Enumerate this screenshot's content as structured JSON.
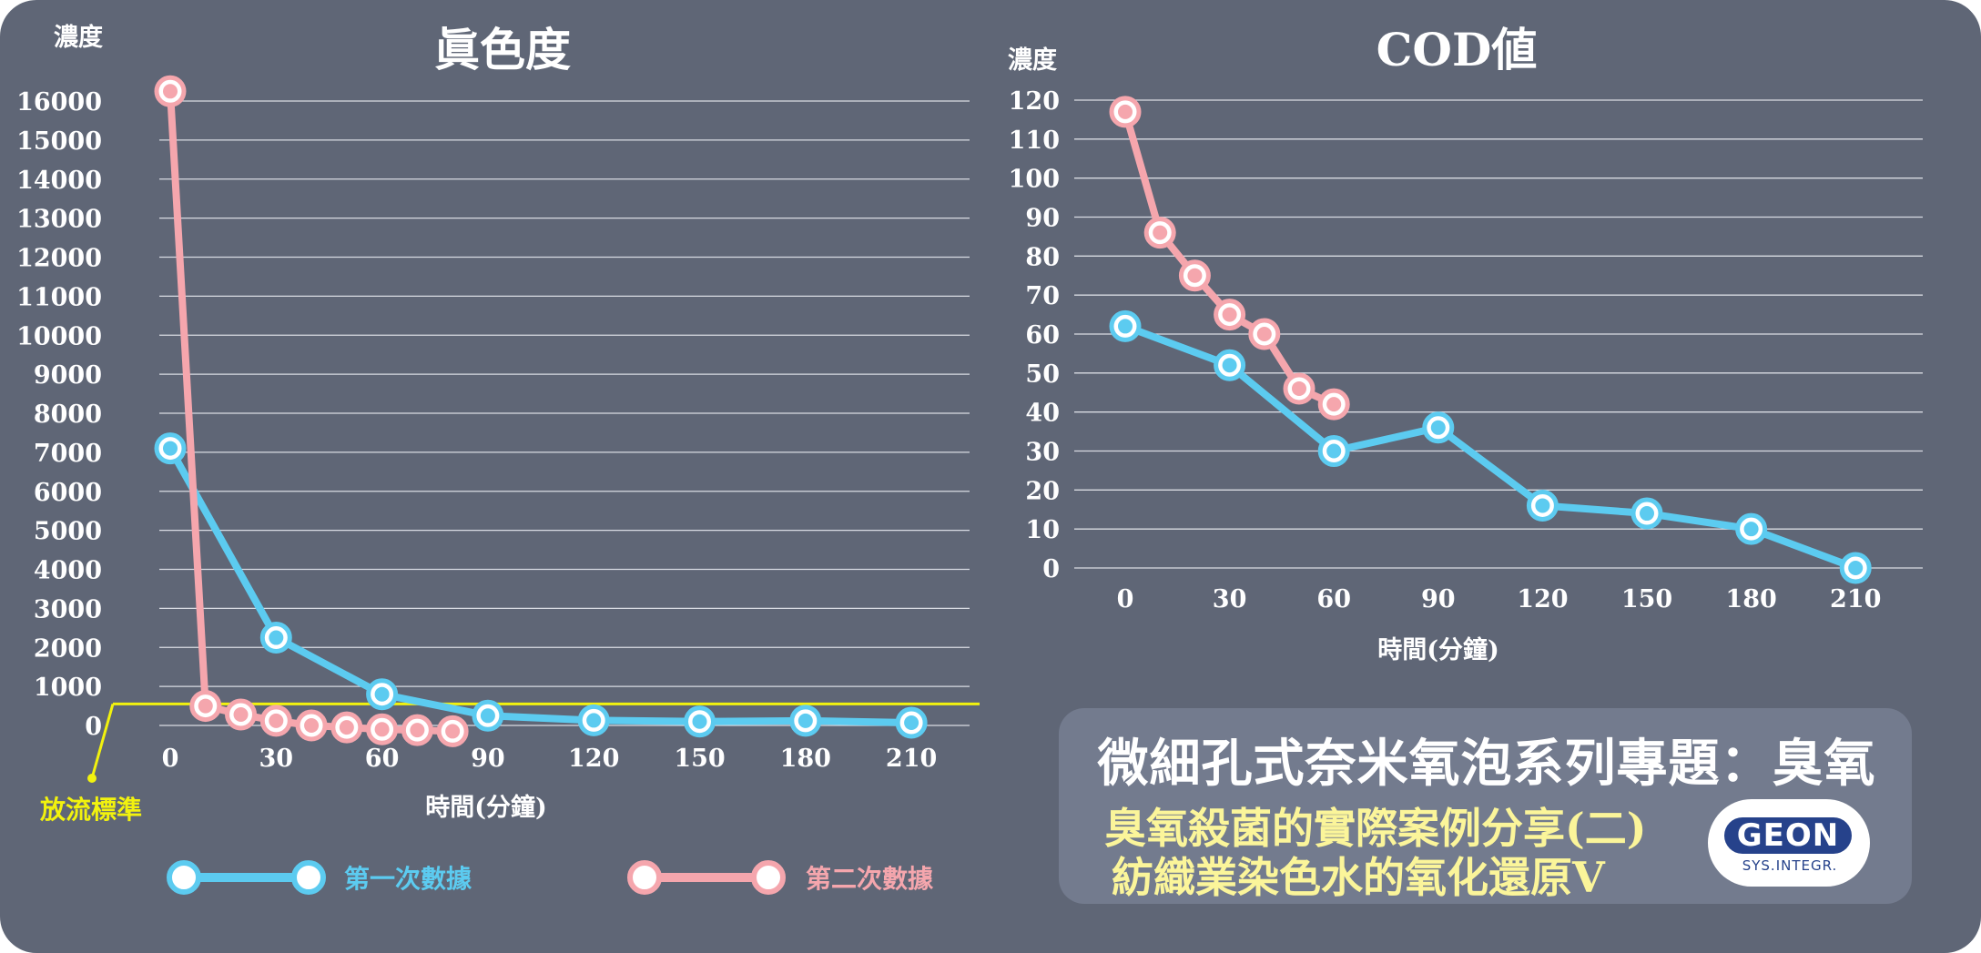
{
  "chart_data": [
    {
      "type": "line",
      "title": "眞色度",
      "ylabel": "濃度",
      "xlabel": "時間(分鐘)",
      "ylim": [
        0,
        16000
      ],
      "yticks": [
        0,
        1000,
        2000,
        3000,
        4000,
        5000,
        6000,
        7000,
        8000,
        9000,
        10000,
        11000,
        12000,
        13000,
        14000,
        15000,
        16000
      ],
      "xticks": [
        0,
        30,
        60,
        90,
        120,
        150,
        180,
        210
      ],
      "threshold": {
        "label": "放流標準",
        "value": 550
      },
      "series": [
        {
          "name": "第一次數據",
          "color": "#5ccbf0",
          "x": [
            0,
            30,
            60,
            90,
            120,
            150,
            180,
            210
          ],
          "values": [
            7100,
            2250,
            800,
            250,
            130,
            100,
            120,
            70
          ]
        },
        {
          "name": "第二次數據",
          "color": "#f5a6ad",
          "x": [
            0,
            10,
            20,
            30,
            40,
            50,
            60,
            70,
            80
          ],
          "values": [
            16250,
            500,
            280,
            120,
            0,
            -50,
            -100,
            -120,
            -150
          ]
        }
      ]
    },
    {
      "type": "line",
      "title": "COD値",
      "ylabel": "濃度",
      "xlabel": "時間(分鐘)",
      "ylim": [
        0,
        120
      ],
      "yticks": [
        0,
        10,
        20,
        30,
        40,
        50,
        60,
        70,
        80,
        90,
        100,
        110,
        120
      ],
      "xticks": [
        0,
        30,
        60,
        90,
        120,
        150,
        180,
        210
      ],
      "series": [
        {
          "name": "第一次數據",
          "color": "#5ccbf0",
          "x": [
            0,
            30,
            60,
            90,
            120,
            150,
            180,
            210
          ],
          "values": [
            62,
            52,
            30,
            36,
            16,
            14,
            10,
            0
          ]
        },
        {
          "name": "第二次數據",
          "color": "#f5a6ad",
          "x": [
            0,
            10,
            20,
            30,
            40,
            50,
            60
          ],
          "values": [
            117,
            86,
            75,
            65,
            60,
            46,
            42
          ]
        }
      ]
    }
  ],
  "legend": [
    {
      "label": "第一次數據",
      "color": "#5ccbf0"
    },
    {
      "label": "第二次數據",
      "color": "#f5a6ad"
    }
  ],
  "info": {
    "title": "微細孔式奈米氧泡系列專題：臭氧",
    "line1": "臭氧殺菌的實際案例分享(二)",
    "line2": "紡織業染色水的氧化還原V"
  },
  "logo": {
    "name": "GEON",
    "sub": "SYS.INTEGR."
  },
  "colors": {
    "background": "#5f6676",
    "threshold": "#f2f20e",
    "text": "#ffffff"
  }
}
